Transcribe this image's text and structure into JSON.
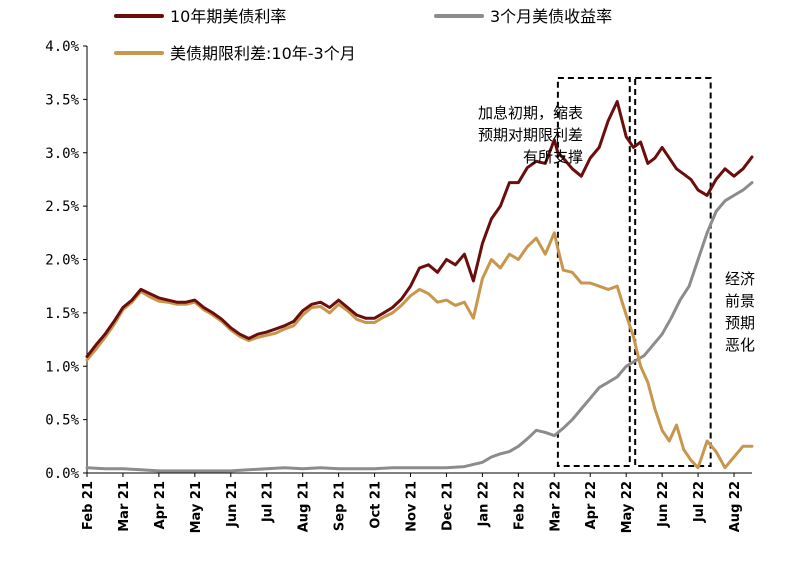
{
  "chart_data": {
    "type": "line",
    "title": "",
    "xlabel": "",
    "ylabel": "",
    "ylim": [
      0,
      4
    ],
    "y_ticks": [
      "0.0%",
      "0.5%",
      "1.0%",
      "1.5%",
      "2.0%",
      "2.5%",
      "3.0%",
      "3.5%",
      "4.0%"
    ],
    "y_tick_values": [
      0,
      0.5,
      1,
      1.5,
      2,
      2.5,
      3,
      3.5,
      4
    ],
    "x_ticks": [
      "Feb 21",
      "Mar 21",
      "Apr 21",
      "May 21",
      "Jun 21",
      "Jul 21",
      "Aug 21",
      "Sep 21",
      "Oct 21",
      "Nov 21",
      "Dec 21",
      "Jan 22",
      "Feb 22",
      "Mar 22",
      "Apr 22",
      "May 22",
      "Jun 22",
      "Jul 22",
      "Aug 22"
    ],
    "x_range": [
      0,
      18.5
    ],
    "series": [
      {
        "name": "10年期美债利率",
        "color": "#6b0d0d",
        "x": [
          0,
          0.25,
          0.5,
          0.75,
          1,
          1.25,
          1.5,
          1.75,
          2,
          2.25,
          2.5,
          2.75,
          3,
          3.25,
          3.5,
          3.75,
          4,
          4.25,
          4.5,
          4.75,
          5,
          5.25,
          5.5,
          5.75,
          6,
          6.25,
          6.5,
          6.75,
          7,
          7.25,
          7.5,
          7.75,
          8,
          8.25,
          8.5,
          8.75,
          9,
          9.25,
          9.5,
          9.75,
          10,
          10.25,
          10.5,
          10.75,
          11,
          11.25,
          11.5,
          11.75,
          12,
          12.25,
          12.5,
          12.75,
          13,
          13.1,
          13.25,
          13.5,
          13.75,
          14,
          14.25,
          14.5,
          14.75,
          15,
          15.2,
          15.4,
          15.6,
          15.8,
          16,
          16.2,
          16.4,
          16.6,
          16.8,
          17,
          17.25,
          17.5,
          17.75,
          18,
          18.25,
          18.5
        ],
        "values": [
          1.09,
          1.2,
          1.3,
          1.42,
          1.55,
          1.62,
          1.72,
          1.68,
          1.64,
          1.62,
          1.6,
          1.6,
          1.62,
          1.55,
          1.5,
          1.44,
          1.36,
          1.3,
          1.26,
          1.3,
          1.32,
          1.35,
          1.38,
          1.42,
          1.52,
          1.58,
          1.6,
          1.55,
          1.62,
          1.55,
          1.48,
          1.45,
          1.45,
          1.5,
          1.55,
          1.63,
          1.75,
          1.92,
          1.95,
          1.88,
          2.0,
          1.95,
          2.05,
          1.8,
          2.15,
          2.38,
          2.5,
          2.72,
          2.72,
          2.86,
          2.92,
          2.9,
          3.12,
          3.0,
          2.95,
          2.85,
          2.78,
          2.95,
          3.05,
          3.3,
          3.48,
          3.15,
          3.05,
          3.1,
          2.9,
          2.95,
          3.05,
          2.95,
          2.85,
          2.8,
          2.75,
          2.65,
          2.6,
          2.75,
          2.85,
          2.78,
          2.85,
          2.96
        ]
      },
      {
        "name": "3个月美债收益率",
        "color": "#8c8c8c",
        "x": [
          0,
          0.5,
          1,
          1.5,
          2,
          2.5,
          3,
          3.5,
          4,
          4.5,
          5,
          5.5,
          6,
          6.5,
          7,
          7.5,
          8,
          8.5,
          9,
          9.5,
          10,
          10.5,
          11,
          11.25,
          11.5,
          11.75,
          12,
          12.25,
          12.5,
          12.75,
          13,
          13.25,
          13.5,
          13.75,
          14,
          14.25,
          14.5,
          14.75,
          15,
          15.25,
          15.5,
          15.75,
          16,
          16.25,
          16.5,
          16.75,
          17,
          17.25,
          17.5,
          17.75,
          18,
          18.25,
          18.5
        ],
        "values": [
          0.05,
          0.04,
          0.04,
          0.03,
          0.02,
          0.02,
          0.02,
          0.02,
          0.02,
          0.03,
          0.04,
          0.05,
          0.04,
          0.05,
          0.04,
          0.04,
          0.04,
          0.05,
          0.05,
          0.05,
          0.05,
          0.06,
          0.1,
          0.15,
          0.18,
          0.2,
          0.25,
          0.32,
          0.4,
          0.38,
          0.35,
          0.42,
          0.5,
          0.6,
          0.7,
          0.8,
          0.85,
          0.9,
          1.0,
          1.05,
          1.1,
          1.2,
          1.3,
          1.45,
          1.62,
          1.75,
          2.0,
          2.25,
          2.45,
          2.55,
          2.6,
          2.65,
          2.72
        ]
      },
      {
        "name": "美债期限利差:10年-3个月",
        "color": "#c8964c",
        "x": [
          0,
          0.25,
          0.5,
          0.75,
          1,
          1.25,
          1.5,
          1.75,
          2,
          2.25,
          2.5,
          2.75,
          3,
          3.25,
          3.5,
          3.75,
          4,
          4.25,
          4.5,
          4.75,
          5,
          5.25,
          5.5,
          5.75,
          6,
          6.25,
          6.5,
          6.75,
          7,
          7.25,
          7.5,
          7.75,
          8,
          8.25,
          8.5,
          8.75,
          9,
          9.25,
          9.5,
          9.75,
          10,
          10.25,
          10.5,
          10.75,
          11,
          11.25,
          11.5,
          11.75,
          12,
          12.25,
          12.5,
          12.75,
          13,
          13.1,
          13.25,
          13.5,
          13.75,
          14,
          14.25,
          14.5,
          14.75,
          15,
          15.2,
          15.4,
          15.6,
          15.8,
          16,
          16.2,
          16.4,
          16.6,
          16.8,
          17,
          17.25,
          17.5,
          17.75,
          18,
          18.25,
          18.5
        ],
        "values": [
          1.06,
          1.16,
          1.27,
          1.39,
          1.53,
          1.6,
          1.7,
          1.65,
          1.61,
          1.6,
          1.58,
          1.58,
          1.6,
          1.53,
          1.48,
          1.42,
          1.34,
          1.28,
          1.24,
          1.27,
          1.29,
          1.31,
          1.35,
          1.38,
          1.48,
          1.55,
          1.56,
          1.5,
          1.58,
          1.52,
          1.44,
          1.41,
          1.41,
          1.46,
          1.5,
          1.57,
          1.66,
          1.72,
          1.68,
          1.6,
          1.62,
          1.57,
          1.6,
          1.45,
          1.82,
          2.0,
          1.92,
          2.05,
          2.0,
          2.12,
          2.2,
          2.05,
          2.25,
          2.1,
          1.9,
          1.88,
          1.78,
          1.78,
          1.75,
          1.72,
          1.75,
          1.48,
          1.28,
          1.0,
          0.85,
          0.6,
          0.4,
          0.3,
          0.45,
          0.22,
          0.12,
          0.05,
          0.3,
          0.2,
          0.05,
          0.15,
          0.25,
          0.25
        ]
      }
    ],
    "legend": [
      "10年期美债利率",
      "3个月美债收益率",
      "美债期限利差:10年-3个月"
    ],
    "annotations": [
      {
        "lines": [
          "加息初期，缩表",
          "预期对期限利差",
          "有所支撑"
        ]
      },
      {
        "lines": [
          "经济",
          "前景",
          "预期",
          "恶化"
        ]
      }
    ],
    "highlight_boxes": [
      {
        "x_start": 13.1,
        "x_end": 15.1
      },
      {
        "x_start": 15.25,
        "x_end": 17.35
      }
    ]
  }
}
